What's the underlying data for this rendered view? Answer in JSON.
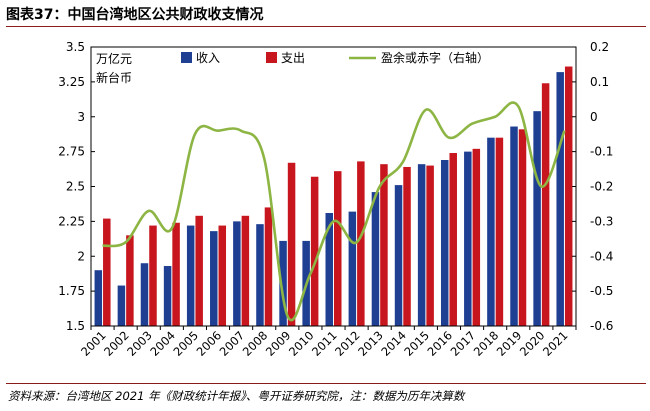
{
  "header": {
    "title": "图表37：中国台湾地区公共财政收支情况"
  },
  "footer": {
    "source": "资料来源：台湾地区 2021 年《财政统计年报》、粤开证券研究院，注：数据为历年决算数"
  },
  "colors": {
    "income": "#1f3f93",
    "expenditure": "#c8161e",
    "balance": "#8db544",
    "axis": "#000000"
  },
  "chart_data": {
    "type": "bar",
    "categories": [
      "2001",
      "2002",
      "2003",
      "2004",
      "2005",
      "2006",
      "2007",
      "2008",
      "2009",
      "2010",
      "2011",
      "2012",
      "2013",
      "2014",
      "2015",
      "2016",
      "2017",
      "2018",
      "2019",
      "2020",
      "2021"
    ],
    "ylabel": "万亿元\n新台币",
    "ylim": [
      1.5,
      3.5
    ],
    "y_ticks": [
      "1.5",
      "1.75",
      "2",
      "2.25",
      "2.5",
      "2.75",
      "3",
      "3.25",
      "3.5"
    ],
    "y2lim": [
      -0.6,
      0.2
    ],
    "y2_ticks": [
      "-0.6",
      "-0.5",
      "-0.4",
      "-0.3",
      "-0.2",
      "-0.1",
      "0",
      "0.1",
      "0.2"
    ],
    "legend_position": "top",
    "grid": false,
    "series": [
      {
        "name": "收入",
        "type": "bar",
        "axis": "left",
        "values": [
          1.9,
          1.79,
          1.95,
          1.93,
          2.22,
          2.18,
          2.25,
          2.23,
          2.11,
          2.11,
          2.31,
          2.32,
          2.46,
          2.51,
          2.66,
          2.69,
          2.75,
          2.85,
          2.93,
          3.04,
          3.32
        ]
      },
      {
        "name": "支出",
        "type": "bar",
        "axis": "left",
        "values": [
          2.27,
          2.15,
          2.22,
          2.24,
          2.29,
          2.22,
          2.29,
          2.35,
          2.67,
          2.57,
          2.61,
          2.68,
          2.66,
          2.64,
          2.65,
          2.74,
          2.77,
          2.85,
          2.91,
          3.24,
          3.36
        ]
      },
      {
        "name": "盈余或赤字（右轴）",
        "type": "line",
        "axis": "right",
        "values": [
          -0.37,
          -0.36,
          -0.27,
          -0.32,
          -0.05,
          -0.04,
          -0.04,
          -0.12,
          -0.57,
          -0.45,
          -0.3,
          -0.36,
          -0.2,
          -0.13,
          0.02,
          -0.06,
          -0.02,
          0.0,
          0.03,
          -0.2,
          -0.04
        ]
      }
    ]
  }
}
